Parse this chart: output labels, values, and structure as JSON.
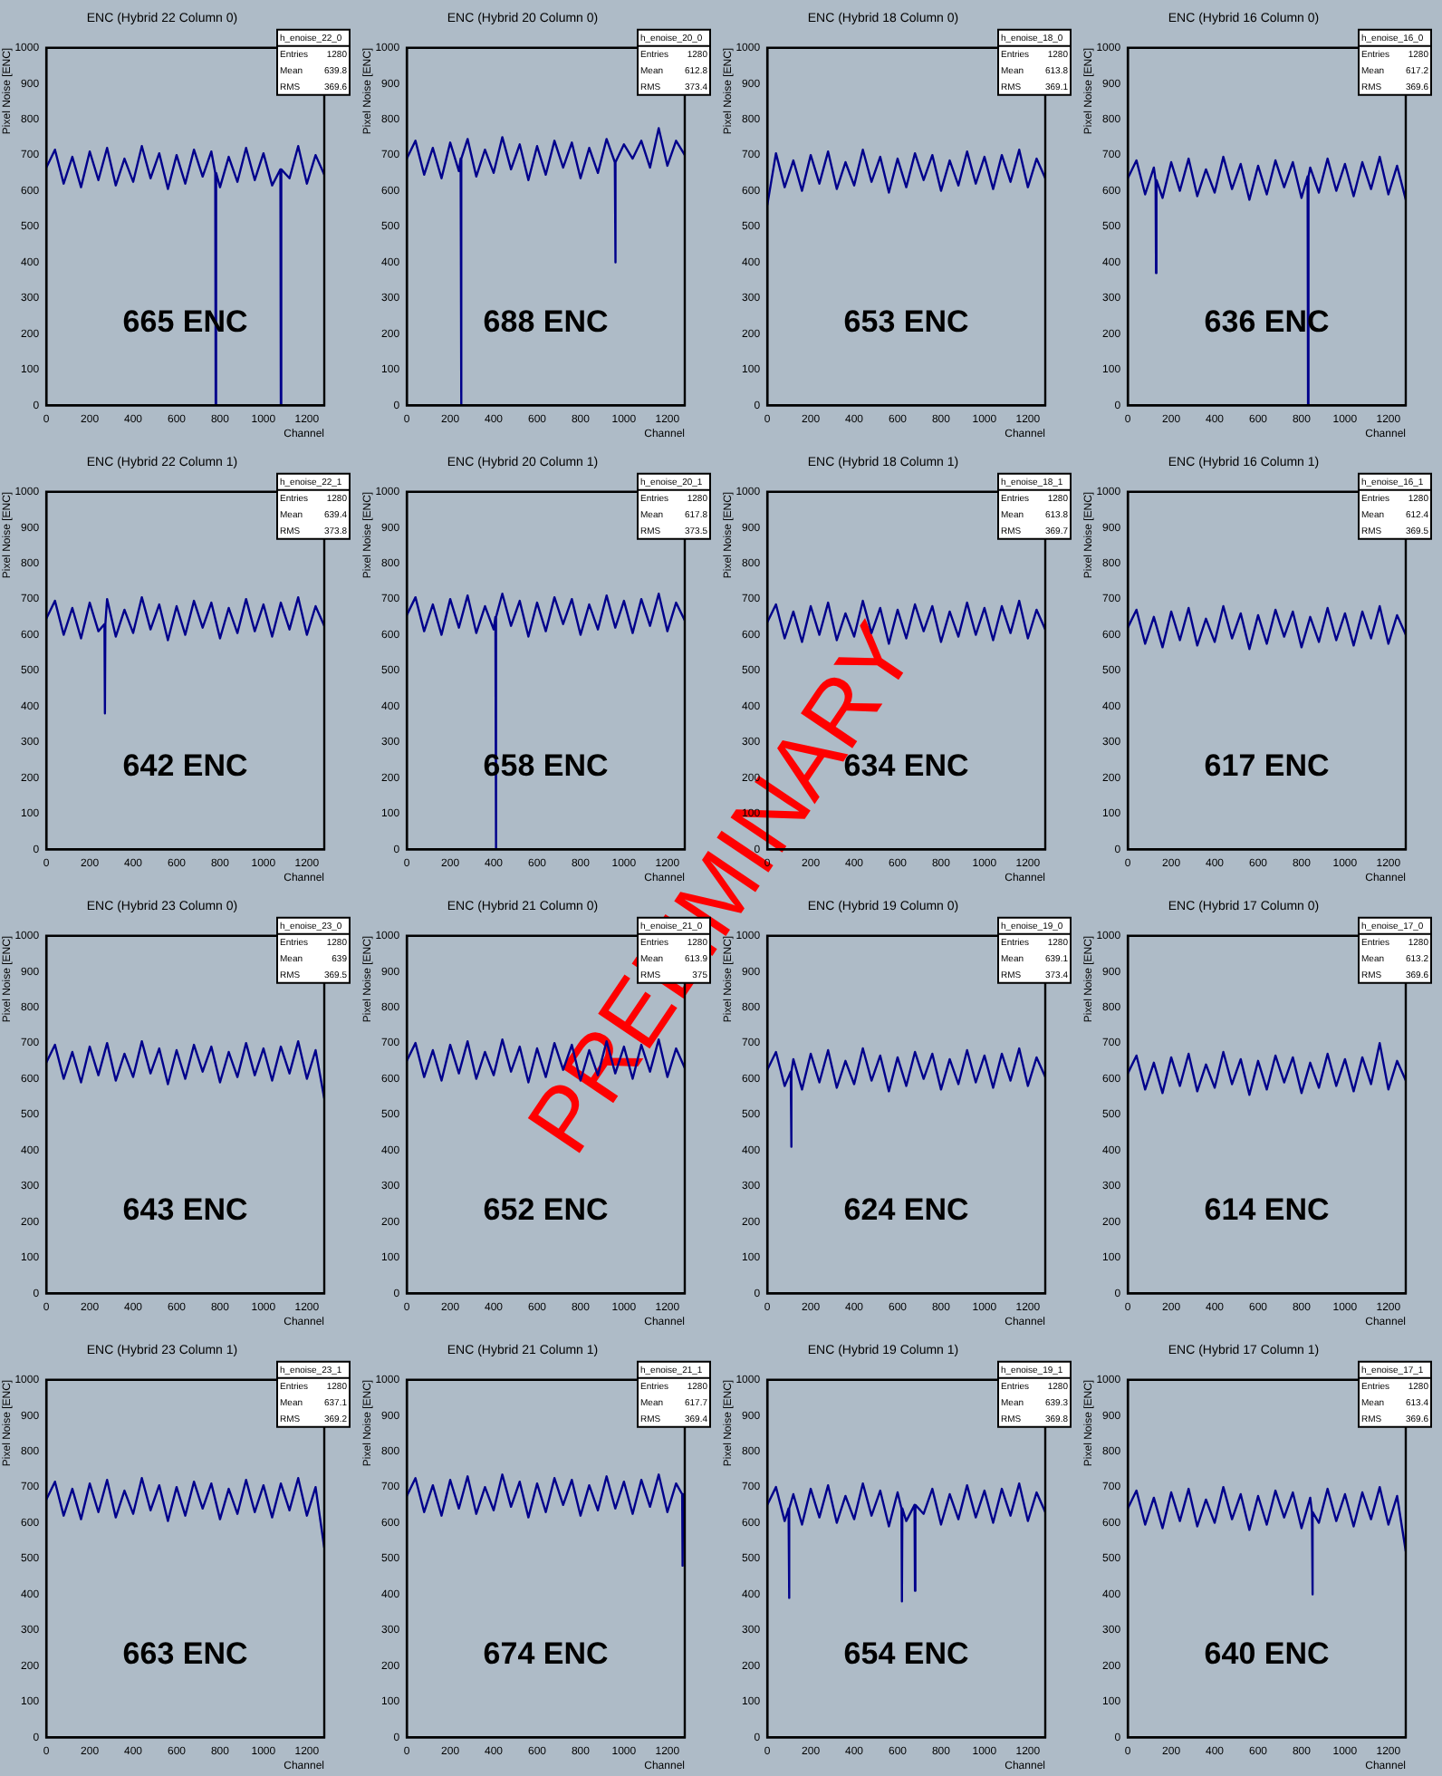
{
  "chart_data": [
    {
      "type": "line",
      "title": "ENC (Hybrid 22 Column 0)",
      "xlabel": "Channel",
      "ylabel": "Pixel Noise [ENC]",
      "xlim": [
        0,
        1280
      ],
      "xticks": [
        0,
        200,
        400,
        600,
        800,
        1000,
        1200
      ],
      "ylim": [
        0,
        1000
      ],
      "yticks": [
        0,
        100,
        200,
        300,
        400,
        500,
        600,
        700,
        800,
        900,
        1000
      ],
      "annotations": [
        "665 ENC",
        "h_enoise_22_0",
        "Entries 1280",
        "Mean 639.8",
        "RMS 369.6"
      ],
      "x": [
        0,
        40,
        80,
        120,
        160,
        200,
        240,
        280,
        320,
        360,
        400,
        440,
        480,
        520,
        560,
        600,
        640,
        680,
        720,
        760,
        778,
        780,
        782,
        800,
        840,
        880,
        920,
        960,
        1000,
        1040,
        1078,
        1080,
        1082,
        1120,
        1160,
        1200,
        1240,
        1280
      ],
      "series": [
        {
          "color": "#00008b",
          "values": [
            665,
            715,
            620,
            695,
            610,
            710,
            630,
            720,
            615,
            690,
            625,
            725,
            635,
            705,
            605,
            700,
            620,
            715,
            640,
            710,
            650,
            0,
            650,
            610,
            695,
            625,
            720,
            630,
            705,
            615,
            660,
            0,
            660,
            635,
            725,
            620,
            700,
            645
          ]
        }
      ]
    },
    {
      "type": "line",
      "title": "ENC (Hybrid 20 Column 0)",
      "xlabel": "Channel",
      "ylabel": "Pixel Noise [ENC]",
      "xlim": [
        0,
        1280
      ],
      "xticks": [
        0,
        200,
        400,
        600,
        800,
        1000,
        1200
      ],
      "ylim": [
        0,
        1000
      ],
      "yticks": [
        0,
        100,
        200,
        300,
        400,
        500,
        600,
        700,
        800,
        900,
        1000
      ],
      "annotations": [
        "688 ENC",
        "h_enoise_20_0",
        "Entries 1280",
        "Mean 612.8",
        "RMS 373.4"
      ],
      "x": [
        0,
        40,
        80,
        120,
        160,
        200,
        240,
        248,
        250,
        252,
        280,
        320,
        360,
        400,
        440,
        480,
        520,
        560,
        600,
        640,
        680,
        720,
        760,
        800,
        840,
        880,
        920,
        958,
        960,
        962,
        1000,
        1040,
        1080,
        1120,
        1160,
        1200,
        1240,
        1280
      ],
      "series": [
        {
          "color": "#00008b",
          "values": [
            690,
            740,
            645,
            720,
            635,
            735,
            655,
            690,
            0,
            690,
            745,
            640,
            715,
            650,
            750,
            660,
            730,
            630,
            725,
            645,
            740,
            665,
            735,
            635,
            720,
            650,
            745,
            680,
            400,
            680,
            730,
            690,
            740,
            665,
            775,
            670,
            740,
            700
          ]
        }
      ]
    },
    {
      "type": "line",
      "title": "ENC (Hybrid 18 Column 0)",
      "xlabel": "Channel",
      "ylabel": "Pixel Noise [ENC]",
      "xlim": [
        0,
        1280
      ],
      "xticks": [
        0,
        200,
        400,
        600,
        800,
        1000,
        1200
      ],
      "ylim": [
        0,
        1000
      ],
      "yticks": [
        0,
        100,
        200,
        300,
        400,
        500,
        600,
        700,
        800,
        900,
        1000
      ],
      "annotations": [
        "653 ENC",
        "h_enoise_18_0",
        "Entries 1280",
        "Mean 613.8",
        "RMS 369.1"
      ],
      "x": [
        0,
        40,
        80,
        120,
        160,
        200,
        240,
        280,
        320,
        360,
        400,
        440,
        480,
        520,
        560,
        600,
        640,
        680,
        720,
        760,
        800,
        840,
        880,
        920,
        960,
        1000,
        1040,
        1080,
        1120,
        1160,
        1200,
        1240,
        1280
      ],
      "series": [
        {
          "color": "#00008b",
          "values": [
            560,
            705,
            610,
            685,
            600,
            700,
            620,
            710,
            605,
            680,
            615,
            715,
            625,
            695,
            595,
            690,
            610,
            705,
            630,
            700,
            600,
            685,
            615,
            710,
            620,
            695,
            605,
            700,
            625,
            715,
            610,
            690,
            635
          ]
        }
      ]
    },
    {
      "type": "line",
      "title": "ENC (Hybrid 16 Column 0)",
      "xlabel": "Channel",
      "ylabel": "Pixel Noise [ENC]",
      "xlim": [
        0,
        1280
      ],
      "xticks": [
        0,
        200,
        400,
        600,
        800,
        1000,
        1200
      ],
      "ylim": [
        0,
        1000
      ],
      "yticks": [
        0,
        100,
        200,
        300,
        400,
        500,
        600,
        700,
        800,
        900,
        1000
      ],
      "annotations": [
        "636 ENC",
        "h_enoise_16_0",
        "Entries 1280",
        "Mean 617.2",
        "RMS 369.6"
      ],
      "x": [
        0,
        40,
        80,
        120,
        128,
        130,
        132,
        160,
        200,
        240,
        280,
        320,
        360,
        400,
        440,
        480,
        520,
        560,
        600,
        640,
        680,
        720,
        760,
        800,
        828,
        830,
        832,
        840,
        880,
        920,
        960,
        1000,
        1040,
        1080,
        1120,
        1160,
        1200,
        1240,
        1280
      ],
      "series": [
        {
          "color": "#00008b",
          "values": [
            635,
            685,
            590,
            665,
            630,
            370,
            630,
            580,
            680,
            600,
            690,
            585,
            660,
            595,
            695,
            605,
            675,
            575,
            670,
            590,
            685,
            610,
            680,
            580,
            640,
            0,
            640,
            665,
            595,
            690,
            600,
            675,
            585,
            680,
            605,
            695,
            590,
            670,
            575
          ]
        }
      ]
    },
    {
      "type": "line",
      "title": "ENC (Hybrid 22 Column 1)",
      "xlabel": "Channel",
      "ylabel": "Pixel Noise [ENC]",
      "xlim": [
        0,
        1280
      ],
      "xticks": [
        0,
        200,
        400,
        600,
        800,
        1000,
        1200
      ],
      "ylim": [
        0,
        1000
      ],
      "yticks": [
        0,
        100,
        200,
        300,
        400,
        500,
        600,
        700,
        800,
        900,
        1000
      ],
      "annotations": [
        "642 ENC",
        "h_enoise_22_1",
        "Entries 1280",
        "Mean 639.4",
        "RMS 373.8"
      ],
      "x": [
        0,
        40,
        80,
        120,
        160,
        200,
        240,
        268,
        270,
        272,
        280,
        320,
        360,
        400,
        440,
        480,
        520,
        560,
        600,
        640,
        680,
        720,
        760,
        800,
        840,
        880,
        920,
        960,
        1000,
        1040,
        1080,
        1120,
        1160,
        1200,
        1240,
        1280
      ],
      "series": [
        {
          "color": "#00008b",
          "values": [
            645,
            695,
            600,
            675,
            590,
            690,
            610,
            630,
            380,
            630,
            700,
            595,
            670,
            605,
            705,
            615,
            685,
            585,
            680,
            600,
            695,
            620,
            690,
            590,
            675,
            605,
            700,
            610,
            685,
            595,
            690,
            615,
            705,
            600,
            680,
            625
          ]
        }
      ]
    },
    {
      "type": "line",
      "title": "ENC (Hybrid 20 Column 1)",
      "xlabel": "Channel",
      "ylabel": "Pixel Noise [ENC]",
      "xlim": [
        0,
        1280
      ],
      "xticks": [
        0,
        200,
        400,
        600,
        800,
        1000,
        1200
      ],
      "ylim": [
        0,
        1000
      ],
      "yticks": [
        0,
        100,
        200,
        300,
        400,
        500,
        600,
        700,
        800,
        900,
        1000
      ],
      "annotations": [
        "658 ENC",
        "h_enoise_20_1",
        "Entries 1280",
        "Mean 617.8",
        "RMS 373.5"
      ],
      "x": [
        0,
        40,
        80,
        120,
        160,
        200,
        240,
        280,
        320,
        360,
        400,
        408,
        410,
        412,
        440,
        480,
        520,
        560,
        600,
        640,
        680,
        720,
        760,
        800,
        840,
        880,
        920,
        960,
        1000,
        1040,
        1080,
        1120,
        1160,
        1200,
        1240,
        1280
      ],
      "series": [
        {
          "color": "#00008b",
          "values": [
            655,
            705,
            610,
            685,
            600,
            700,
            620,
            710,
            605,
            680,
            615,
            650,
            0,
            650,
            715,
            625,
            695,
            595,
            690,
            610,
            705,
            630,
            700,
            600,
            685,
            615,
            710,
            620,
            695,
            605,
            700,
            625,
            715,
            610,
            690,
            640
          ]
        }
      ]
    },
    {
      "type": "line",
      "title": "ENC (Hybrid 18 Column 1)",
      "xlabel": "Channel",
      "ylabel": "Pixel Noise [ENC]",
      "xlim": [
        0,
        1280
      ],
      "xticks": [
        0,
        200,
        400,
        600,
        800,
        1000,
        1200
      ],
      "ylim": [
        0,
        1000
      ],
      "yticks": [
        0,
        100,
        200,
        300,
        400,
        500,
        600,
        700,
        800,
        900,
        1000
      ],
      "annotations": [
        "634 ENC",
        "h_enoise_18_1",
        "Entries 1280",
        "Mean 613.8",
        "RMS 369.7"
      ],
      "x": [
        0,
        40,
        80,
        120,
        160,
        200,
        240,
        280,
        320,
        360,
        400,
        440,
        480,
        520,
        560,
        600,
        640,
        680,
        720,
        760,
        800,
        840,
        880,
        920,
        960,
        1000,
        1040,
        1080,
        1120,
        1160,
        1200,
        1240,
        1280
      ],
      "series": [
        {
          "color": "#00008b",
          "values": [
            635,
            685,
            590,
            665,
            580,
            680,
            600,
            690,
            585,
            660,
            595,
            695,
            605,
            675,
            575,
            670,
            590,
            685,
            610,
            680,
            580,
            665,
            595,
            690,
            600,
            675,
            585,
            680,
            605,
            695,
            590,
            670,
            615
          ]
        }
      ]
    },
    {
      "type": "line",
      "title": "ENC (Hybrid 16 Column 1)",
      "xlabel": "Channel",
      "ylabel": "Pixel Noise [ENC]",
      "xlim": [
        0,
        1280
      ],
      "xticks": [
        0,
        200,
        400,
        600,
        800,
        1000,
        1200
      ],
      "ylim": [
        0,
        1000
      ],
      "yticks": [
        0,
        100,
        200,
        300,
        400,
        500,
        600,
        700,
        800,
        900,
        1000
      ],
      "annotations": [
        "617 ENC",
        "h_enoise_16_1",
        "Entries 1280",
        "Mean 612.4",
        "RMS 369.5"
      ],
      "x": [
        0,
        40,
        80,
        120,
        160,
        200,
        240,
        280,
        320,
        360,
        400,
        440,
        480,
        520,
        560,
        600,
        640,
        680,
        720,
        760,
        800,
        840,
        880,
        920,
        960,
        1000,
        1040,
        1080,
        1120,
        1160,
        1200,
        1240,
        1280
      ],
      "series": [
        {
          "color": "#00008b",
          "values": [
            620,
            670,
            575,
            650,
            565,
            665,
            585,
            675,
            570,
            645,
            580,
            680,
            590,
            660,
            560,
            655,
            575,
            670,
            595,
            665,
            565,
            650,
            580,
            675,
            585,
            660,
            570,
            665,
            590,
            680,
            575,
            655,
            600
          ]
        }
      ]
    },
    {
      "type": "line",
      "title": "ENC (Hybrid 23 Column 0)",
      "xlabel": "Channel",
      "ylabel": "Pixel Noise [ENC]",
      "xlim": [
        0,
        1280
      ],
      "xticks": [
        0,
        200,
        400,
        600,
        800,
        1000,
        1200
      ],
      "ylim": [
        0,
        1000
      ],
      "yticks": [
        0,
        100,
        200,
        300,
        400,
        500,
        600,
        700,
        800,
        900,
        1000
      ],
      "annotations": [
        "643 ENC",
        "h_enoise_23_0",
        "Entries 1280",
        "Mean 639",
        "RMS 369.5"
      ],
      "x": [
        0,
        40,
        80,
        120,
        160,
        200,
        240,
        280,
        320,
        360,
        400,
        440,
        480,
        520,
        560,
        600,
        640,
        680,
        720,
        760,
        800,
        840,
        880,
        920,
        960,
        1000,
        1040,
        1080,
        1120,
        1160,
        1200,
        1240,
        1280
      ],
      "series": [
        {
          "color": "#00008b",
          "values": [
            645,
            695,
            600,
            675,
            590,
            690,
            610,
            700,
            595,
            670,
            605,
            705,
            615,
            685,
            585,
            680,
            600,
            695,
            620,
            690,
            590,
            675,
            605,
            700,
            610,
            685,
            595,
            690,
            615,
            705,
            600,
            680,
            545
          ]
        }
      ]
    },
    {
      "type": "line",
      "title": "ENC (Hybrid 21 Column 0)",
      "xlabel": "Channel",
      "ylabel": "Pixel Noise [ENC]",
      "xlim": [
        0,
        1280
      ],
      "xticks": [
        0,
        200,
        400,
        600,
        800,
        1000,
        1200
      ],
      "ylim": [
        0,
        1000
      ],
      "yticks": [
        0,
        100,
        200,
        300,
        400,
        500,
        600,
        700,
        800,
        900,
        1000
      ],
      "annotations": [
        "652 ENC",
        "h_enoise_21_0",
        "Entries 1280",
        "Mean 613.9",
        "RMS 375",
        "PRELIMINARY"
      ],
      "x": [
        0,
        40,
        80,
        120,
        160,
        200,
        240,
        280,
        320,
        360,
        400,
        440,
        480,
        520,
        560,
        600,
        640,
        680,
        720,
        760,
        800,
        840,
        880,
        920,
        960,
        1000,
        1040,
        1080,
        1120,
        1160,
        1200,
        1240,
        1280
      ],
      "series": [
        {
          "color": "#00008b",
          "values": [
            650,
            700,
            605,
            680,
            595,
            695,
            615,
            705,
            600,
            675,
            610,
            710,
            620,
            690,
            590,
            685,
            605,
            700,
            625,
            695,
            595,
            680,
            610,
            705,
            615,
            690,
            600,
            695,
            620,
            710,
            605,
            685,
            630
          ]
        }
      ]
    },
    {
      "type": "line",
      "title": "ENC (Hybrid 19 Column 0)",
      "xlabel": "Channel",
      "ylabel": "Pixel Noise [ENC]",
      "xlim": [
        0,
        1280
      ],
      "xticks": [
        0,
        200,
        400,
        600,
        800,
        1000,
        1200
      ],
      "ylim": [
        0,
        1000
      ],
      "yticks": [
        0,
        100,
        200,
        300,
        400,
        500,
        600,
        700,
        800,
        900,
        1000
      ],
      "annotations": [
        "624 ENC",
        "h_enoise_19_0",
        "Entries 1280",
        "Mean 639.1",
        "RMS 373.4"
      ],
      "x": [
        0,
        40,
        80,
        108,
        110,
        112,
        120,
        160,
        200,
        240,
        280,
        320,
        360,
        400,
        440,
        480,
        520,
        560,
        600,
        640,
        680,
        720,
        760,
        800,
        840,
        880,
        920,
        960,
        1000,
        1040,
        1080,
        1120,
        1160,
        1200,
        1240,
        1280
      ],
      "series": [
        {
          "color": "#00008b",
          "values": [
            625,
            675,
            580,
            620,
            410,
            620,
            655,
            570,
            670,
            590,
            680,
            575,
            650,
            585,
            685,
            595,
            665,
            565,
            660,
            580,
            675,
            600,
            670,
            570,
            655,
            585,
            680,
            590,
            665,
            575,
            670,
            595,
            685,
            580,
            660,
            605
          ]
        }
      ]
    },
    {
      "type": "line",
      "title": "ENC (Hybrid 17 Column 0)",
      "xlabel": "Channel",
      "ylabel": "Pixel Noise [ENC]",
      "xlim": [
        0,
        1280
      ],
      "xticks": [
        0,
        200,
        400,
        600,
        800,
        1000,
        1200
      ],
      "ylim": [
        0,
        1000
      ],
      "yticks": [
        0,
        100,
        200,
        300,
        400,
        500,
        600,
        700,
        800,
        900,
        1000
      ],
      "annotations": [
        "614 ENC",
        "h_enoise_17_0",
        "Entries 1280",
        "Mean 613.2",
        "RMS 369.6"
      ],
      "x": [
        0,
        40,
        80,
        120,
        160,
        200,
        240,
        280,
        320,
        360,
        400,
        440,
        480,
        520,
        560,
        600,
        640,
        680,
        720,
        760,
        800,
        840,
        880,
        920,
        960,
        1000,
        1040,
        1080,
        1120,
        1160,
        1200,
        1240,
        1280
      ],
      "series": [
        {
          "color": "#00008b",
          "values": [
            615,
            665,
            570,
            645,
            560,
            660,
            580,
            670,
            565,
            640,
            575,
            675,
            585,
            655,
            555,
            650,
            570,
            665,
            590,
            660,
            560,
            645,
            575,
            670,
            580,
            655,
            565,
            660,
            585,
            700,
            570,
            650,
            595
          ]
        }
      ]
    },
    {
      "type": "line",
      "title": "ENC (Hybrid 23 Column 1)",
      "xlabel": "Channel",
      "ylabel": "Pixel Noise [ENC]",
      "xlim": [
        0,
        1280
      ],
      "xticks": [
        0,
        200,
        400,
        600,
        800,
        1000,
        1200
      ],
      "ylim": [
        0,
        1000
      ],
      "yticks": [
        0,
        100,
        200,
        300,
        400,
        500,
        600,
        700,
        800,
        900,
        1000
      ],
      "annotations": [
        "663 ENC",
        "h_enoise_23_1",
        "Entries 1280",
        "Mean 637.1",
        "RMS 369.2"
      ],
      "x": [
        0,
        40,
        80,
        120,
        160,
        200,
        240,
        280,
        320,
        360,
        400,
        440,
        480,
        520,
        560,
        600,
        640,
        680,
        720,
        760,
        800,
        840,
        880,
        920,
        960,
        1000,
        1040,
        1080,
        1120,
        1160,
        1200,
        1240,
        1280
      ],
      "series": [
        {
          "color": "#00008b",
          "values": [
            665,
            715,
            620,
            695,
            610,
            710,
            630,
            720,
            615,
            690,
            625,
            725,
            635,
            705,
            605,
            700,
            620,
            715,
            640,
            710,
            610,
            695,
            625,
            720,
            630,
            705,
            615,
            710,
            635,
            725,
            620,
            700,
            530
          ]
        }
      ]
    },
    {
      "type": "line",
      "title": "ENC (Hybrid 21 Column 1)",
      "xlabel": "Channel",
      "ylabel": "Pixel Noise [ENC]",
      "xlim": [
        0,
        1280
      ],
      "xticks": [
        0,
        200,
        400,
        600,
        800,
        1000,
        1200
      ],
      "ylim": [
        0,
        1000
      ],
      "yticks": [
        0,
        100,
        200,
        300,
        400,
        500,
        600,
        700,
        800,
        900,
        1000
      ],
      "annotations": [
        "674 ENC",
        "h_enoise_21_1",
        "Entries 1280",
        "Mean 617.7",
        "RMS 369.4"
      ],
      "x": [
        0,
        40,
        80,
        120,
        160,
        200,
        240,
        280,
        320,
        360,
        400,
        440,
        480,
        520,
        560,
        600,
        640,
        680,
        720,
        760,
        800,
        840,
        880,
        920,
        960,
        1000,
        1040,
        1080,
        1120,
        1160,
        1200,
        1240,
        1268,
        1270,
        1272,
        1280
      ],
      "series": [
        {
          "color": "#00008b",
          "values": [
            675,
            725,
            630,
            705,
            620,
            720,
            640,
            730,
            625,
            700,
            635,
            735,
            645,
            715,
            615,
            710,
            630,
            725,
            650,
            720,
            620,
            705,
            635,
            730,
            640,
            715,
            625,
            720,
            645,
            735,
            630,
            710,
            680,
            480,
            680,
            655
          ]
        }
      ]
    },
    {
      "type": "line",
      "title": "ENC (Hybrid 19 Column 1)",
      "xlabel": "Channel",
      "ylabel": "Pixel Noise [ENC]",
      "xlim": [
        0,
        1280
      ],
      "xticks": [
        0,
        200,
        400,
        600,
        800,
        1000,
        1200
      ],
      "ylim": [
        0,
        1000
      ],
      "yticks": [
        0,
        100,
        200,
        300,
        400,
        500,
        600,
        700,
        800,
        900,
        1000
      ],
      "annotations": [
        "654 ENC",
        "h_enoise_19_1",
        "Entries 1280",
        "Mean 639.3",
        "RMS 369.8"
      ],
      "x": [
        0,
        40,
        80,
        98,
        100,
        102,
        120,
        160,
        200,
        240,
        280,
        320,
        360,
        400,
        440,
        480,
        520,
        560,
        600,
        618,
        620,
        622,
        640,
        678,
        680,
        682,
        720,
        760,
        800,
        840,
        880,
        920,
        960,
        1000,
        1040,
        1080,
        1120,
        1160,
        1200,
        1240,
        1280
      ],
      "series": [
        {
          "color": "#00008b",
          "values": [
            650,
            700,
            605,
            640,
            390,
            640,
            680,
            595,
            695,
            615,
            705,
            600,
            675,
            610,
            710,
            620,
            690,
            590,
            685,
            640,
            380,
            640,
            605,
            650,
            410,
            650,
            625,
            695,
            595,
            680,
            610,
            705,
            615,
            690,
            600,
            695,
            620,
            710,
            605,
            685,
            630
          ]
        }
      ]
    },
    {
      "type": "line",
      "title": "ENC (Hybrid 17 Column 1)",
      "xlabel": "Channel",
      "ylabel": "Pixel Noise [ENC]",
      "xlim": [
        0,
        1280
      ],
      "xticks": [
        0,
        200,
        400,
        600,
        800,
        1000,
        1200
      ],
      "ylim": [
        0,
        1000
      ],
      "yticks": [
        0,
        100,
        200,
        300,
        400,
        500,
        600,
        700,
        800,
        900,
        1000
      ],
      "annotations": [
        "640 ENC",
        "h_enoise_17_1",
        "Entries 1280",
        "Mean 613.4",
        "RMS 369.6"
      ],
      "x": [
        0,
        40,
        80,
        120,
        160,
        200,
        240,
        280,
        320,
        360,
        400,
        440,
        480,
        520,
        560,
        600,
        640,
        680,
        720,
        760,
        800,
        840,
        848,
        850,
        852,
        880,
        920,
        960,
        1000,
        1040,
        1080,
        1120,
        1160,
        1200,
        1240,
        1280
      ],
      "series": [
        {
          "color": "#00008b",
          "values": [
            640,
            690,
            595,
            670,
            585,
            685,
            605,
            695,
            590,
            665,
            600,
            700,
            610,
            680,
            580,
            675,
            595,
            690,
            615,
            685,
            585,
            670,
            630,
            400,
            630,
            600,
            695,
            605,
            680,
            590,
            685,
            610,
            700,
            595,
            675,
            520
          ]
        }
      ]
    }
  ]
}
